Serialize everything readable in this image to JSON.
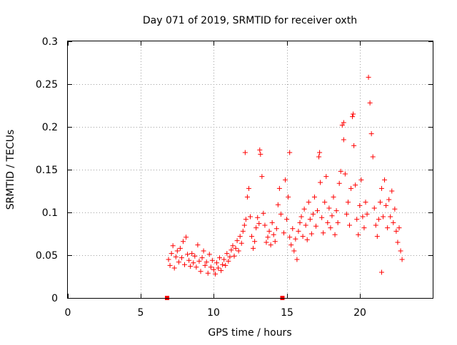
{
  "chart_data": {
    "type": "scatter",
    "title": "Day 071 of 2019, SRMTID for receiver oxth",
    "xlabel": "GPS time / hours",
    "ylabel": "SRMTID / TECUs",
    "xlim": [
      0,
      25
    ],
    "ylim": [
      0,
      0.3
    ],
    "x_ticks": [
      0,
      5,
      10,
      15,
      20
    ],
    "x_tick_labels": [
      "0",
      "5",
      "10",
      "15",
      "20"
    ],
    "y_ticks": [
      0,
      0.05,
      0.1,
      0.15,
      0.2,
      0.25,
      0.3
    ],
    "y_tick_labels": [
      "0",
      "0.05",
      "0.1",
      "0.15",
      "0.2",
      "0.25",
      "0.3"
    ],
    "grid": true,
    "marker": "plus",
    "color": "#ff0000",
    "zero_markers_x": [
      6.8,
      14.7
    ],
    "series": [
      {
        "name": "SRMTID",
        "points": [
          [
            6.9,
            0.045
          ],
          [
            7.0,
            0.038
          ],
          [
            7.1,
            0.052
          ],
          [
            7.2,
            0.061
          ],
          [
            7.3,
            0.035
          ],
          [
            7.4,
            0.048
          ],
          [
            7.5,
            0.055
          ],
          [
            7.6,
            0.042
          ],
          [
            7.7,
            0.058
          ],
          [
            7.8,
            0.047
          ],
          [
            7.9,
            0.066
          ],
          [
            8.0,
            0.039
          ],
          [
            8.1,
            0.071
          ],
          [
            8.2,
            0.051
          ],
          [
            8.3,
            0.044
          ],
          [
            8.4,
            0.037
          ],
          [
            8.5,
            0.052
          ],
          [
            8.6,
            0.041
          ],
          [
            8.7,
            0.049
          ],
          [
            8.8,
            0.036
          ],
          [
            8.9,
            0.062
          ],
          [
            9.0,
            0.043
          ],
          [
            9.1,
            0.031
          ],
          [
            9.2,
            0.047
          ],
          [
            9.3,
            0.055
          ],
          [
            9.4,
            0.038
          ],
          [
            9.5,
            0.042
          ],
          [
            9.6,
            0.029
          ],
          [
            9.7,
            0.051
          ],
          [
            9.8,
            0.036
          ],
          [
            9.9,
            0.044
          ],
          [
            10.0,
            0.033
          ],
          [
            10.1,
            0.028
          ],
          [
            10.2,
            0.041
          ],
          [
            10.3,
            0.035
          ],
          [
            10.4,
            0.047
          ],
          [
            10.5,
            0.032
          ],
          [
            10.6,
            0.039
          ],
          [
            10.7,
            0.045
          ],
          [
            10.8,
            0.038
          ],
          [
            10.9,
            0.052
          ],
          [
            11.0,
            0.043
          ],
          [
            11.1,
            0.048
          ],
          [
            11.2,
            0.056
          ],
          [
            11.3,
            0.061
          ],
          [
            11.4,
            0.049
          ],
          [
            11.5,
            0.058
          ],
          [
            11.6,
            0.067
          ],
          [
            11.7,
            0.055
          ],
          [
            11.8,
            0.072
          ],
          [
            11.9,
            0.064
          ],
          [
            12.0,
            0.078
          ],
          [
            12.1,
            0.085
          ],
          [
            12.2,
            0.092
          ],
          [
            12.3,
            0.118
          ],
          [
            12.4,
            0.128
          ],
          [
            12.5,
            0.095
          ],
          [
            12.6,
            0.072
          ],
          [
            12.7,
            0.058
          ],
          [
            12.8,
            0.066
          ],
          [
            12.9,
            0.082
          ],
          [
            13.0,
            0.094
          ],
          [
            13.1,
            0.087
          ],
          [
            13.2,
            0.168
          ],
          [
            13.3,
            0.142
          ],
          [
            13.4,
            0.099
          ],
          [
            13.5,
            0.085
          ],
          [
            13.6,
            0.065
          ],
          [
            13.7,
            0.071
          ],
          [
            13.8,
            0.078
          ],
          [
            13.9,
            0.062
          ],
          [
            14.0,
            0.088
          ],
          [
            14.1,
            0.074
          ],
          [
            14.2,
            0.066
          ],
          [
            14.3,
            0.081
          ],
          [
            14.4,
            0.109
          ],
          [
            14.5,
            0.128
          ],
          [
            14.6,
            0.098
          ],
          [
            14.8,
            0.076
          ],
          [
            14.9,
            0.138
          ],
          [
            15.0,
            0.092
          ],
          [
            15.1,
            0.118
          ],
          [
            15.2,
            0.071
          ],
          [
            15.3,
            0.062
          ],
          [
            15.4,
            0.081
          ],
          [
            15.5,
            0.055
          ],
          [
            15.6,
            0.069
          ],
          [
            15.7,
            0.045
          ],
          [
            15.8,
            0.078
          ],
          [
            15.9,
            0.088
          ],
          [
            16.0,
            0.095
          ],
          [
            16.1,
            0.072
          ],
          [
            16.2,
            0.104
          ],
          [
            16.3,
            0.085
          ],
          [
            16.4,
            0.068
          ],
          [
            16.5,
            0.112
          ],
          [
            16.6,
            0.092
          ],
          [
            16.7,
            0.075
          ],
          [
            16.8,
            0.098
          ],
          [
            16.9,
            0.118
          ],
          [
            17.0,
            0.084
          ],
          [
            17.1,
            0.102
          ],
          [
            17.2,
            0.165
          ],
          [
            17.3,
            0.135
          ],
          [
            17.4,
            0.094
          ],
          [
            17.5,
            0.076
          ],
          [
            17.6,
            0.112
          ],
          [
            17.7,
            0.142
          ],
          [
            17.8,
            0.088
          ],
          [
            17.9,
            0.105
          ],
          [
            18.0,
            0.082
          ],
          [
            18.1,
            0.096
          ],
          [
            18.2,
            0.118
          ],
          [
            18.3,
            0.074
          ],
          [
            18.4,
            0.102
          ],
          [
            18.5,
            0.088
          ],
          [
            18.6,
            0.134
          ],
          [
            18.7,
            0.148
          ],
          [
            18.8,
            0.202
          ],
          [
            18.9,
            0.185
          ],
          [
            19.0,
            0.145
          ],
          [
            19.1,
            0.098
          ],
          [
            19.2,
            0.112
          ],
          [
            19.3,
            0.085
          ],
          [
            19.4,
            0.128
          ],
          [
            19.5,
            0.212
          ],
          [
            19.6,
            0.178
          ],
          [
            19.7,
            0.132
          ],
          [
            19.8,
            0.092
          ],
          [
            19.9,
            0.074
          ],
          [
            20.0,
            0.108
          ],
          [
            20.1,
            0.138
          ],
          [
            20.2,
            0.095
          ],
          [
            20.3,
            0.082
          ],
          [
            20.4,
            0.112
          ],
          [
            20.5,
            0.098
          ],
          [
            20.6,
            0.258
          ],
          [
            20.7,
            0.228
          ],
          [
            20.8,
            0.192
          ],
          [
            20.9,
            0.165
          ],
          [
            21.0,
            0.105
          ],
          [
            21.1,
            0.085
          ],
          [
            21.2,
            0.072
          ],
          [
            21.3,
            0.092
          ],
          [
            21.4,
            0.112
          ],
          [
            21.5,
            0.128
          ],
          [
            21.6,
            0.095
          ],
          [
            21.7,
            0.138
          ],
          [
            21.8,
            0.108
          ],
          [
            21.9,
            0.082
          ],
          [
            22.0,
            0.115
          ],
          [
            22.1,
            0.095
          ],
          [
            22.2,
            0.125
          ],
          [
            22.3,
            0.088
          ],
          [
            22.4,
            0.104
          ],
          [
            22.5,
            0.078
          ],
          [
            22.6,
            0.065
          ],
          [
            22.7,
            0.082
          ],
          [
            22.8,
            0.055
          ],
          [
            22.9,
            0.045
          ],
          [
            21.5,
            0.03
          ],
          [
            18.9,
            0.205
          ],
          [
            19.55,
            0.215
          ],
          [
            17.25,
            0.17
          ],
          [
            15.2,
            0.17
          ],
          [
            13.15,
            0.173
          ],
          [
            12.15,
            0.17
          ]
        ]
      }
    ]
  }
}
